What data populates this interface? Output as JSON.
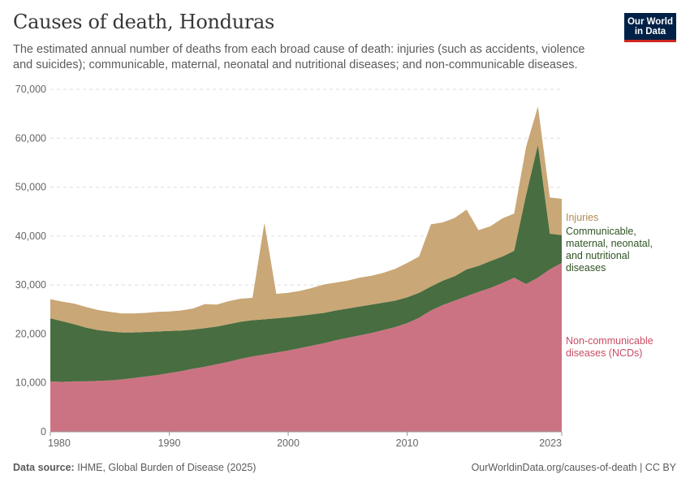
{
  "header": {
    "title": "Causes of death, Honduras",
    "subtitle": "The estimated annual number of deaths from each broad cause of death: injuries (such as accidents, violence and suicides); communicable, maternal, neonatal and nutritional diseases; and non-communicable diseases.",
    "logo_line1": "Our World",
    "logo_line2": "in Data"
  },
  "footer": {
    "source_label": "Data source:",
    "source_text": "IHME, Global Burden of Disease (2025)",
    "url_text": "OurWorldinData.org/causes-of-death | CC BY"
  },
  "colors": {
    "ncd": "#cc7383",
    "communicable": "#486d40",
    "injuries": "#c9a776",
    "ncd_label": "#c94c64",
    "communicable_label": "#2f5423",
    "injuries_label": "#b08a52",
    "grid": "#dddddd"
  },
  "chart_data": {
    "type": "area",
    "stacked": true,
    "x": [
      1980,
      1981,
      1982,
      1983,
      1984,
      1985,
      1986,
      1987,
      1988,
      1989,
      1990,
      1991,
      1992,
      1993,
      1994,
      1995,
      1996,
      1997,
      1998,
      1999,
      2000,
      2001,
      2002,
      2003,
      2004,
      2005,
      2006,
      2007,
      2008,
      2009,
      2010,
      2011,
      2012,
      2013,
      2014,
      2015,
      2016,
      2017,
      2018,
      2019,
      2020,
      2021,
      2022,
      2023
    ],
    "series": [
      {
        "name": "Non-communicable diseases (NCDs)",
        "key": "ncd",
        "values": [
          10300,
          10200,
          10300,
          10300,
          10400,
          10500,
          10700,
          11000,
          11300,
          11600,
          12000,
          12400,
          12900,
          13300,
          13800,
          14300,
          14900,
          15400,
          15800,
          16200,
          16600,
          17100,
          17600,
          18100,
          18700,
          19200,
          19700,
          20200,
          20800,
          21400,
          22200,
          23300,
          24800,
          25900,
          26800,
          27700,
          28600,
          29400,
          30400,
          31500,
          30200,
          31500,
          33200,
          34500
        ]
      },
      {
        "name": "Communicable, maternal, neonatal, and nutritional diseases",
        "key": "communicable",
        "values": [
          12900,
          12400,
          11700,
          11000,
          10400,
          10000,
          9600,
          9300,
          9100,
          8900,
          8600,
          8300,
          8000,
          7900,
          7700,
          7700,
          7600,
          7400,
          7200,
          7000,
          6800,
          6600,
          6400,
          6200,
          6100,
          6000,
          5900,
          5800,
          5600,
          5400,
          5300,
          5100,
          4900,
          5000,
          5000,
          5500,
          5300,
          5500,
          5400,
          5500,
          18200,
          27200,
          7300,
          5700
        ]
      },
      {
        "name": "Injuries",
        "key": "injuries",
        "values": [
          3900,
          4000,
          4200,
          4200,
          4100,
          4000,
          3900,
          3900,
          3900,
          4000,
          4000,
          4100,
          4300,
          4900,
          4500,
          4700,
          4700,
          4600,
          19700,
          5000,
          5000,
          5100,
          5400,
          5800,
          5700,
          5700,
          5900,
          5900,
          6100,
          6500,
          7000,
          7400,
          12700,
          11900,
          11900,
          12200,
          7300,
          7100,
          7800,
          7600,
          9800,
          7800,
          7400,
          7400
        ]
      }
    ],
    "legend": [
      {
        "key": "injuries",
        "lines": [
          "Injuries"
        ]
      },
      {
        "key": "communicable",
        "lines": [
          "Communicable,",
          "maternal, neonatal,",
          "and nutritional",
          "diseases"
        ]
      },
      {
        "key": "ncd",
        "lines": [
          "Non-communicable",
          "diseases (NCDs)"
        ]
      }
    ],
    "ylim": [
      0,
      70000
    ],
    "yticks": [
      0,
      10000,
      20000,
      30000,
      40000,
      50000,
      60000,
      70000
    ],
    "ytick_labels": [
      "0",
      "10,000",
      "20,000",
      "30,000",
      "40,000",
      "50,000",
      "60,000",
      "70,000"
    ],
    "xticks": [
      1980,
      1990,
      2000,
      2010,
      2023
    ],
    "xtick_labels": [
      "1980",
      "1990",
      "2000",
      "2010",
      "2023"
    ],
    "grid": true,
    "legend_position": "right"
  }
}
